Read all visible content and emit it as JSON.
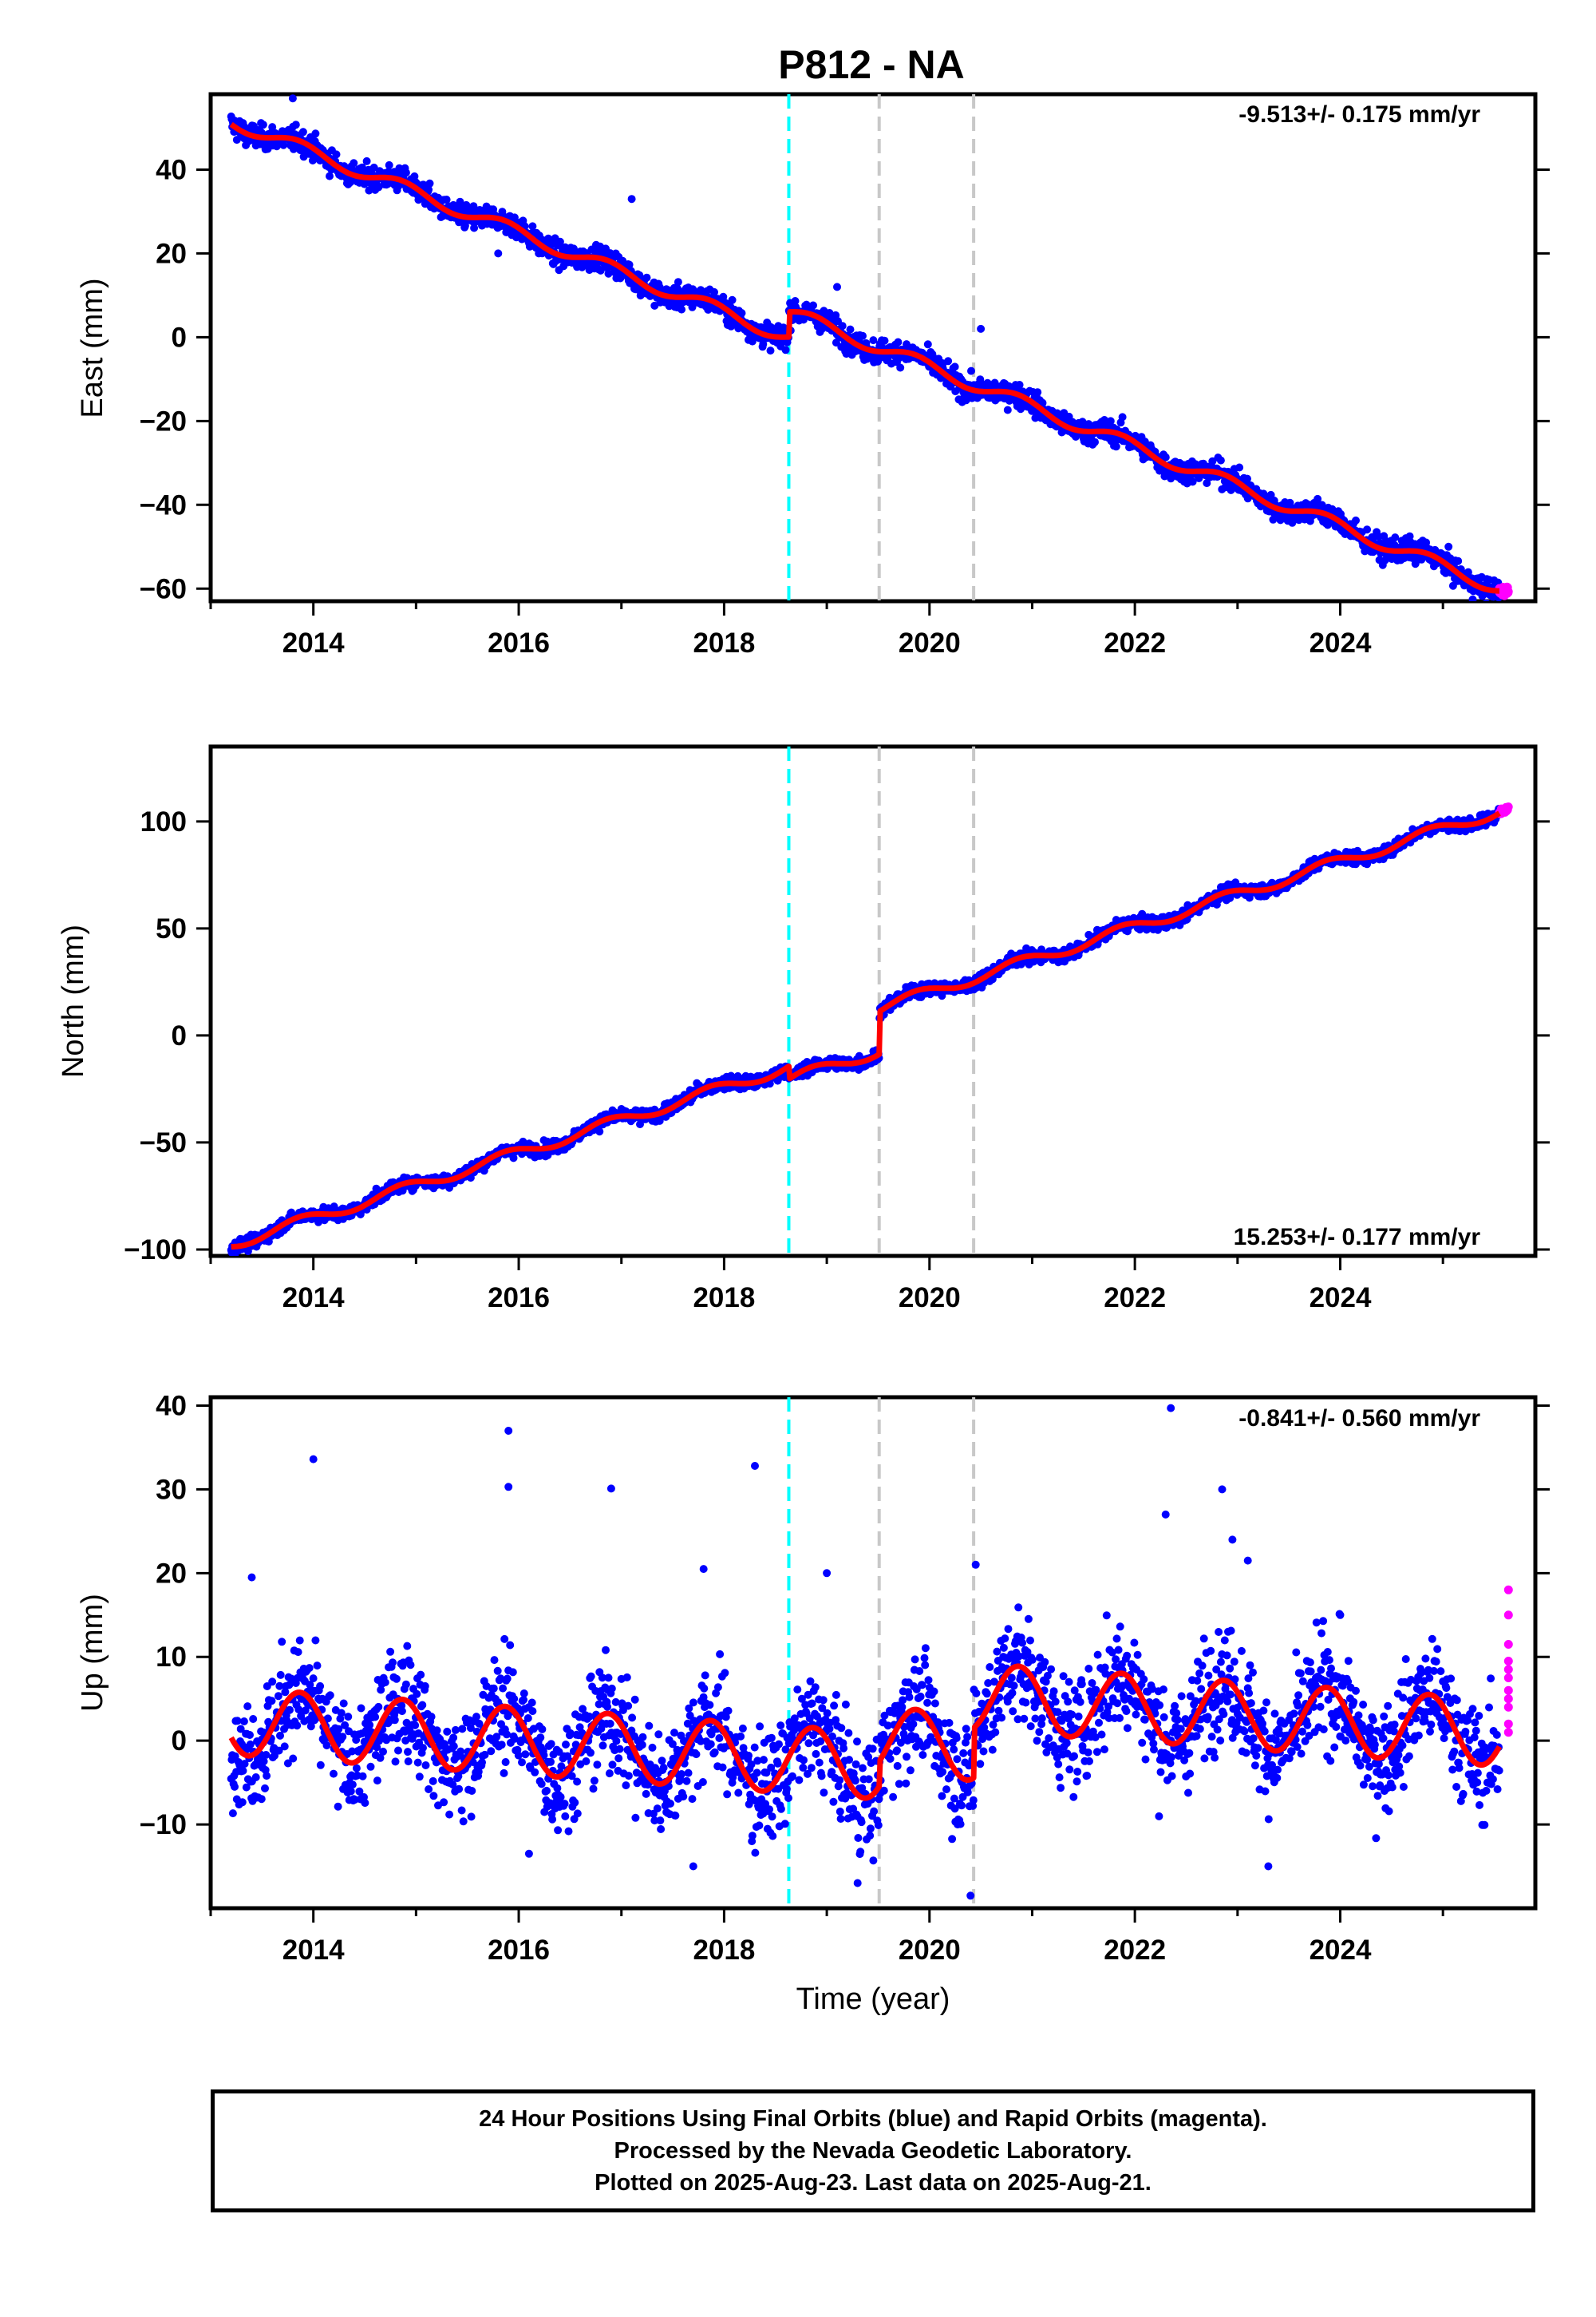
{
  "title": "P812 - NA",
  "footer": {
    "line1": "24 Hour Positions Using Final Orbits (blue) and Rapid Orbits (magenta).",
    "line2": "Processed by the Nevada Geodetic Laboratory.",
    "line3": "Plotted on 2025-Aug-23. Last data on 2025-Aug-21."
  },
  "colors": {
    "final_orbits": "#0000ff",
    "rapid_orbits": "#ff00ff",
    "model": "#ff0000",
    "offset_equipment": "#00ffff",
    "offset_other": "#c8c8c8"
  },
  "chart_data": [
    {
      "type": "scatter",
      "ylabel": "East (mm)",
      "xlabel": "",
      "xlim": [
        2013.0,
        2025.9
      ],
      "ylim": [
        -63,
        58
      ],
      "xticks": [
        2014,
        2016,
        2018,
        2020,
        2022,
        2024
      ],
      "yticks": [
        -60,
        -40,
        -20,
        0,
        20,
        40
      ],
      "rate_label": "-9.513+/- 0.175 mm/yr",
      "rate_position": "top-right",
      "grid": false,
      "offsets": [
        {
          "x": 2018.63,
          "kind": "cyan"
        },
        {
          "x": 2019.51,
          "kind": "gray"
        },
        {
          "x": 2020.43,
          "kind": "gray"
        }
      ],
      "model": {
        "intercept_at_2013": 53.5,
        "rate": -9.513,
        "annual_amplitude": 1.6,
        "annual_phase": 2.4,
        "steps": [
          {
            "x": 2018.63,
            "dy": 6.0
          }
        ]
      },
      "scatter": {
        "noise": 2.0,
        "outliers": [
          [
            2013.8,
            57
          ],
          [
            2017.1,
            33
          ],
          [
            2019.1,
            12
          ],
          [
            2020.5,
            2
          ],
          [
            2015.8,
            20
          ],
          [
            2017.8,
            8
          ]
        ]
      },
      "final_orbit_range": [
        2013.2,
        2025.55
      ],
      "rapid_orbit_range": [
        2025.55,
        2025.64
      ]
    },
    {
      "type": "scatter",
      "ylabel": "North (mm)",
      "xlabel": "",
      "xlim": [
        2013.0,
        2025.9
      ],
      "ylim": [
        -103,
        135
      ],
      "xticks": [
        2014,
        2016,
        2018,
        2020,
        2022,
        2024
      ],
      "yticks": [
        -100,
        -50,
        0,
        50,
        100
      ],
      "rate_label": "15.253+/- 0.177 mm/yr",
      "rate_position": "bottom-right",
      "grid": false,
      "offsets": [
        {
          "x": 2018.63,
          "kind": "cyan"
        },
        {
          "x": 2019.51,
          "kind": "gray"
        },
        {
          "x": 2020.43,
          "kind": "gray"
        }
      ],
      "model": {
        "intercept_at_2013": -100.5,
        "rate": 15.253,
        "annual_amplitude": 2.6,
        "annual_phase": 2.4,
        "steps": [
          {
            "x": 2018.63,
            "dy": -6.0
          },
          {
            "x": 2019.51,
            "dy": 20.0
          }
        ]
      },
      "scatter": {
        "noise": 2.2,
        "outliers": []
      },
      "final_orbit_range": [
        2013.2,
        2025.55
      ],
      "rapid_orbit_range": [
        2025.55,
        2025.64
      ]
    },
    {
      "type": "scatter",
      "ylabel": "Up (mm)",
      "xlabel": "Time (year)",
      "xlim": [
        2013.0,
        2025.9
      ],
      "ylim": [
        -20,
        41
      ],
      "xticks": [
        2014,
        2016,
        2018,
        2020,
        2022,
        2024
      ],
      "yticks": [
        -10,
        0,
        10,
        20,
        30,
        40
      ],
      "rate_label": "-0.841+/- 0.560 mm/yr",
      "rate_position": "top-right",
      "grid": false,
      "offsets": [
        {
          "x": 2018.63,
          "kind": "cyan"
        },
        {
          "x": 2019.51,
          "kind": "gray"
        },
        {
          "x": 2020.43,
          "kind": "gray"
        }
      ],
      "model": {
        "intercept_at_2013": 2.5,
        "rate": -0.841,
        "annual_amplitude": 4.0,
        "annual_phase": 2.4,
        "steps": [
          {
            "x": 2019.51,
            "dy": 3.0
          },
          {
            "x": 2020.43,
            "dy": 6.0
          }
        ]
      },
      "scatter": {
        "noise": 4.5,
        "outliers": [
          [
            2014.0,
            33.6
          ],
          [
            2015.9,
            37
          ],
          [
            2015.9,
            30.3
          ],
          [
            2016.9,
            30.1
          ],
          [
            2018.3,
            32.8
          ],
          [
            2022.35,
            39.7
          ],
          [
            2022.3,
            27
          ],
          [
            2022.85,
            30
          ],
          [
            2022.95,
            24
          ],
          [
            2023.1,
            21.5
          ],
          [
            2020.45,
            21
          ],
          [
            2019.0,
            20
          ],
          [
            2017.8,
            20.5
          ],
          [
            2024.0,
            15
          ],
          [
            2013.4,
            19.5
          ],
          [
            2019.3,
            -17
          ],
          [
            2020.4,
            -18.5
          ],
          [
            2016.1,
            -13.5
          ],
          [
            2017.7,
            -15
          ],
          [
            2023.3,
            -15
          ]
        ]
      },
      "final_orbit_range": [
        2013.2,
        2025.55
      ],
      "rapid_orbit_range": [
        2025.55,
        2025.64
      ],
      "rapid_orbit_values": [
        18,
        15,
        11.5,
        9.5,
        8.5,
        7.5,
        6,
        5,
        4,
        2,
        1
      ]
    }
  ]
}
